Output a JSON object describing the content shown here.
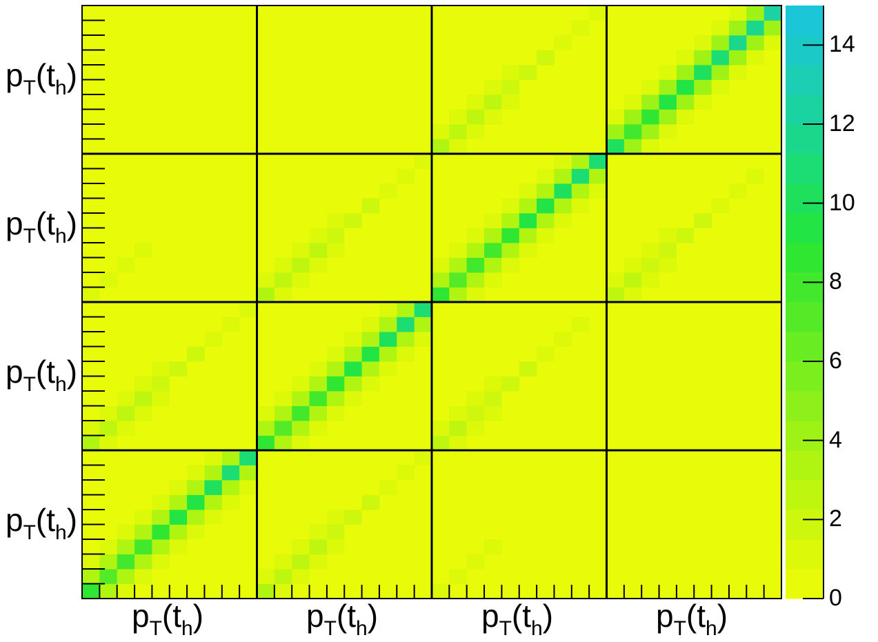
{
  "chart_data": {
    "type": "heatmap",
    "title": "",
    "blocks": 4,
    "bins_per_block": 10,
    "xlabel_text": "p",
    "label_sub_T": "T",
    "label_paren_open": "(t",
    "label_sub_h": "h",
    "label_paren_close": ")",
    "zlim": [
      0,
      15
    ],
    "colorbar_ticks": [
      0,
      2,
      4,
      6,
      8,
      10,
      12,
      14
    ],
    "palette": [
      "#e8fb08",
      "#dcf90a",
      "#cdf70c",
      "#bff60f",
      "#b0f412",
      "#9ff216",
      "#8df01a",
      "#7bee1e",
      "#68ec22",
      "#55ea27",
      "#42e82c",
      "#2fe633",
      "#22e444",
      "#1ee05d",
      "#1cdc74",
      "#1bd78b",
      "#1bd3a0",
      "#1bceb4",
      "#1bcac6",
      "#1bc6d6"
    ],
    "diag_strength": [
      [
        1.0,
        0.3,
        0.1,
        0.0
      ],
      [
        0.3,
        1.0,
        0.25,
        0.0
      ],
      [
        0.1,
        0.3,
        1.0,
        0.25
      ],
      [
        0.0,
        0.05,
        0.3,
        1.0
      ]
    ],
    "diag_peak": [
      11.0,
      11.0,
      11.0,
      12.5
    ]
  }
}
